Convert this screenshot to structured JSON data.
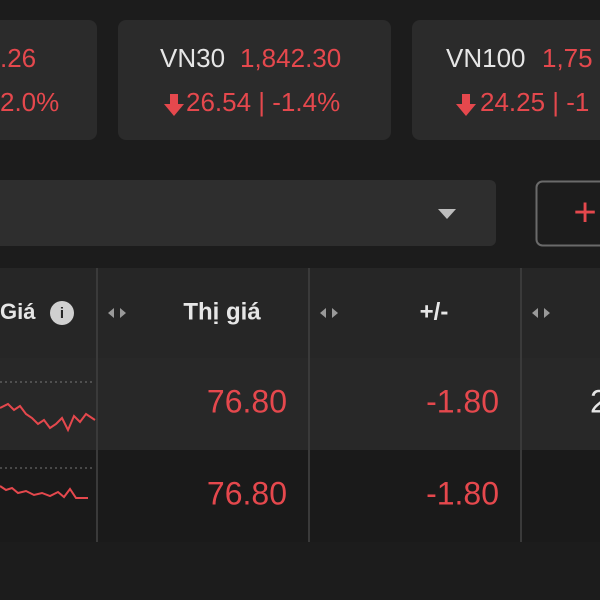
{
  "index_cards": [
    {
      "value": ".26",
      "change": "2.0%"
    },
    {
      "name": "VN30",
      "value": "1,842.30",
      "change": "26.54 | -1.4%"
    },
    {
      "name": "VN100",
      "value": "1,75",
      "change": "24.25 | -1"
    }
  ],
  "add_button": "+",
  "table": {
    "headers": [
      "Giá",
      "Thị giá",
      "+/-"
    ],
    "info_icon": "i",
    "rows": [
      [
        "76.80",
        "-1.80",
        "2"
      ],
      [
        "76.80",
        "-1.80"
      ]
    ]
  }
}
